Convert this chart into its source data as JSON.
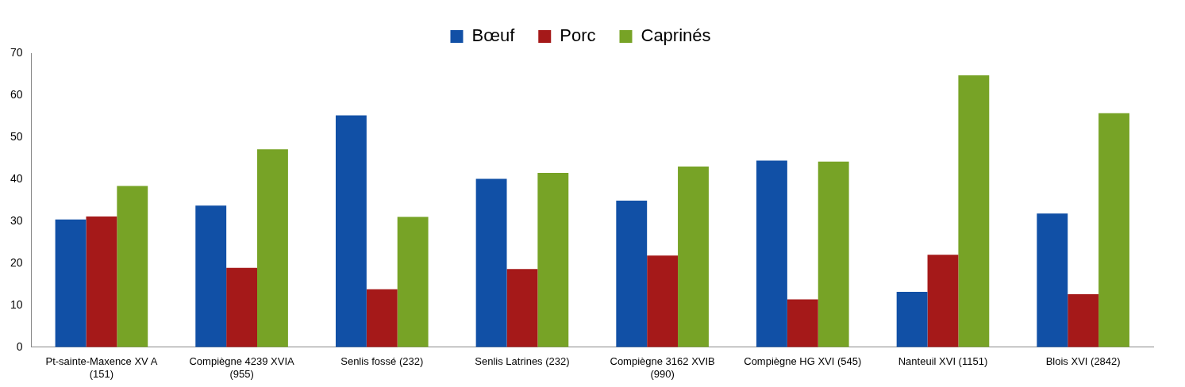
{
  "chart_data": {
    "type": "bar",
    "categories": [
      "Pt-sainte-Maxence XV A (151)",
      "Compiègne 4239 XVIA (955)",
      "Senlis fossé (232)",
      "Senlis Latrines (232)",
      "Compiègne 3162 XVIB (990)",
      "Compiègne HG XVI (545)",
      "Nanteuil XVI (1151)",
      "Blois XVI (2842)"
    ],
    "series": [
      {
        "name": "Bœuf",
        "color": "#1150a6",
        "values": [
          30.4,
          33.7,
          55.2,
          40.1,
          34.9,
          44.4,
          13.2,
          31.8
        ]
      },
      {
        "name": "Porc",
        "color": "#a51919",
        "values": [
          31.1,
          18.9,
          13.8,
          18.6,
          21.8,
          11.4,
          22.0,
          12.6
        ]
      },
      {
        "name": "Caprinés",
        "color": "#77a326",
        "values": [
          38.4,
          47.1,
          31.0,
          41.5,
          43.0,
          44.2,
          64.7,
          55.7
        ]
      }
    ],
    "ylim": [
      0,
      70
    ],
    "yticks": [
      0,
      10,
      20,
      30,
      40,
      50,
      60,
      70
    ],
    "grid": false,
    "legend": "top"
  }
}
